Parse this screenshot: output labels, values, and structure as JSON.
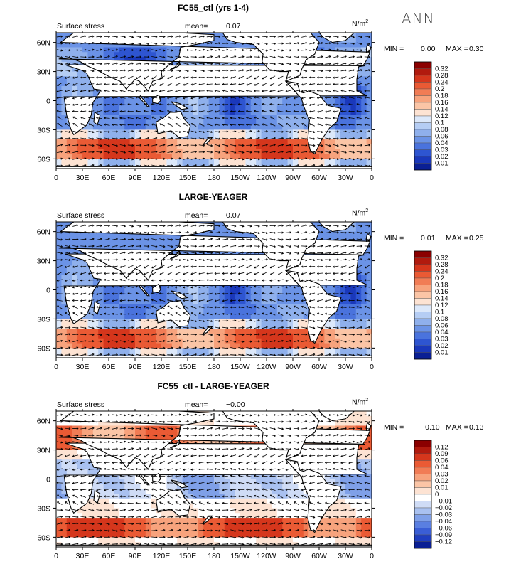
{
  "season_label": "ANN",
  "chart_data": [
    {
      "type": "heatmap",
      "title": "FC55_ctl (yrs 1-4)",
      "variable": "Surface stress",
      "mean_label": "mean=",
      "mean_value": "0.07",
      "units_base": "N/m",
      "units_exp": "2",
      "min_label": "MIN =",
      "min_value": "0.00",
      "max_label": "MAX =",
      "max_value": "0.30",
      "x_tick_labels": [
        "0",
        "30E",
        "60E",
        "90E",
        "120E",
        "150E",
        "180",
        "150W",
        "120W",
        "90W",
        "60W",
        "30W",
        "0"
      ],
      "y_tick_labels": [
        "60N",
        "30N",
        "0",
        "30S",
        "60S"
      ],
      "y_tick_values": [
        60,
        30,
        0,
        -30,
        -60
      ],
      "xlim": [
        0,
        360
      ],
      "ylim": [
        -70,
        70
      ],
      "colorbar_levels": [
        "0.32",
        "0.28",
        "0.24",
        "0.2",
        "0.18",
        "0.16",
        "0.14",
        "0.12",
        "0.1",
        "0.08",
        "0.06",
        "0.04",
        "0.03",
        "0.02",
        "0.01"
      ],
      "colorbar_colors": [
        "#8b0000",
        "#b11a0e",
        "#d5361c",
        "#ea5a34",
        "#f17c55",
        "#f7a37d",
        "#fbc5a6",
        "#fde3d3",
        "#dce8fa",
        "#b5cdf4",
        "#8fb0ec",
        "#6b93e6",
        "#4a73dd",
        "#2e55d1",
        "#1a38bb",
        "#0a1f94"
      ]
    },
    {
      "type": "heatmap",
      "title": "LARGE-YEAGER",
      "variable": "Surface stress",
      "mean_label": "mean=",
      "mean_value": "0.07",
      "units_base": "N/m",
      "units_exp": "2",
      "min_label": "MIN =",
      "min_value": "0.01",
      "max_label": "MAX =",
      "max_value": "0.25",
      "x_tick_labels": [
        "0",
        "30E",
        "60E",
        "90E",
        "120E",
        "150E",
        "180",
        "150W",
        "120W",
        "90W",
        "60W",
        "30W",
        "0"
      ],
      "y_tick_labels": [
        "60N",
        "30N",
        "0",
        "30S",
        "60S"
      ],
      "y_tick_values": [
        60,
        30,
        0,
        -30,
        -60
      ],
      "xlim": [
        0,
        360
      ],
      "ylim": [
        -70,
        70
      ],
      "colorbar_levels": [
        "0.32",
        "0.28",
        "0.24",
        "0.2",
        "0.18",
        "0.16",
        "0.14",
        "0.12",
        "0.1",
        "0.08",
        "0.06",
        "0.04",
        "0.03",
        "0.02",
        "0.01"
      ],
      "colorbar_colors": [
        "#8b0000",
        "#b11a0e",
        "#d5361c",
        "#ea5a34",
        "#f17c55",
        "#f7a37d",
        "#fbc5a6",
        "#fde3d3",
        "#dce8fa",
        "#b5cdf4",
        "#8fb0ec",
        "#6b93e6",
        "#4a73dd",
        "#2e55d1",
        "#1a38bb",
        "#0a1f94"
      ]
    },
    {
      "type": "heatmap",
      "title": "FC55_ctl - LARGE-YEAGER",
      "variable": "Surface stress",
      "mean_label": "mean=",
      "mean_value": "−0.00",
      "units_base": "N/m",
      "units_exp": "2",
      "min_label": "MIN =",
      "min_value": "−0.10",
      "max_label": "MAX =",
      "max_value": "0.13",
      "x_tick_labels": [
        "0",
        "30E",
        "60E",
        "90E",
        "120E",
        "150E",
        "180",
        "150W",
        "120W",
        "90W",
        "60W",
        "30W",
        "0"
      ],
      "y_tick_labels": [
        "60N",
        "30N",
        "0",
        "30S",
        "60S"
      ],
      "y_tick_values": [
        60,
        30,
        0,
        -30,
        -60
      ],
      "xlim": [
        0,
        360
      ],
      "ylim": [
        -70,
        70
      ],
      "colorbar_levels": [
        "0.12",
        "0.09",
        "0.06",
        "0.04",
        "0.03",
        "0.02",
        "0.01",
        "0",
        "−0.01",
        "−0.02",
        "−0.03",
        "−0.04",
        "−0.06",
        "−0.09",
        "−0.12"
      ],
      "colorbar_colors": [
        "#8b0000",
        "#b11a0e",
        "#d5361c",
        "#ea5a34",
        "#f17c55",
        "#f7a37d",
        "#fbc5a6",
        "#fde3d3",
        "#ffffff",
        "#cfdcf6",
        "#a9c1f0",
        "#7fa0e8",
        "#5a7fe1",
        "#3a5ed6",
        "#1f3ec0",
        "#0a1f94"
      ]
    }
  ]
}
